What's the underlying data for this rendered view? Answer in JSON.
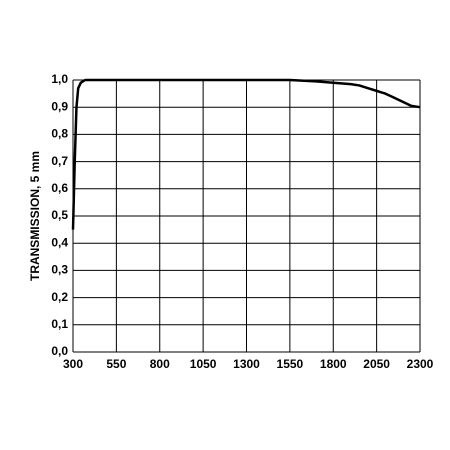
{
  "chart_data": {
    "type": "line",
    "y_label": "TRANSMISSION, 5 mm",
    "x": [
      300,
      310,
      320,
      330,
      345,
      370,
      400,
      600,
      1000,
      1400,
      1550,
      1700,
      1800,
      1900,
      1950,
      2000,
      2050,
      2100,
      2150,
      2200,
      2250,
      2300
    ],
    "series": [
      {
        "name": "transmission",
        "color": "#000000",
        "values": [
          0.45,
          0.7,
          0.9,
          0.97,
          0.99,
          1.0,
          1.0,
          1.0,
          1.0,
          1.0,
          1.0,
          0.995,
          0.99,
          0.985,
          0.98,
          0.97,
          0.96,
          0.95,
          0.935,
          0.92,
          0.905,
          0.9
        ]
      }
    ],
    "xlim": [
      300,
      2300
    ],
    "ylim": [
      0,
      1
    ],
    "xticks": [
      300,
      550,
      800,
      1050,
      1300,
      1550,
      1800,
      2050,
      2300
    ],
    "yticks": [
      {
        "value": 0,
        "label": "0,0"
      },
      {
        "value": 0.1,
        "label": "0,1"
      },
      {
        "value": 0.2,
        "label": "0,2"
      },
      {
        "value": 0.3,
        "label": "0,3"
      },
      {
        "value": 0.4,
        "label": "0,4"
      },
      {
        "value": 0.5,
        "label": "0,5"
      },
      {
        "value": 0.6,
        "label": "0,6"
      },
      {
        "value": 0.7,
        "label": "0,7"
      },
      {
        "value": 0.8,
        "label": "0,8"
      },
      {
        "value": 0.9,
        "label": "0,9"
      },
      {
        "value": 1,
        "label": "1,0"
      }
    ],
    "grid": true
  }
}
